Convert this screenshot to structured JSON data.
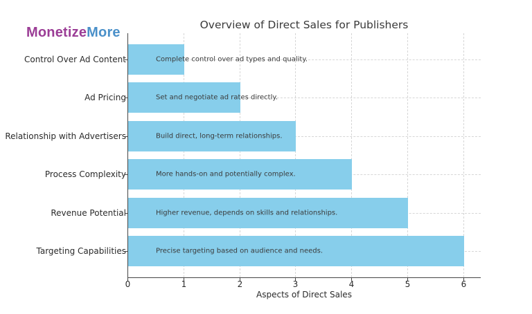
{
  "logo": {
    "part1": "Monetize",
    "part2": "More",
    "color1": "#9b3d96",
    "color2": "#4a90c9"
  },
  "chart_data": {
    "type": "bar",
    "orientation": "horizontal",
    "title": "Overview of Direct Sales for Publishers",
    "xlabel": "Aspects of Direct Sales",
    "ylabel": "",
    "xlim": [
      0,
      6.3
    ],
    "xticks": [
      "0",
      "1",
      "2",
      "3",
      "4",
      "5",
      "6"
    ],
    "grid": true,
    "bar_color": "#87ceeb",
    "categories": [
      "Control Over Ad Content",
      "Ad Pricing",
      "Relationship with Advertisers",
      "Process Complexity",
      "Revenue Potential",
      "Targeting Capabilities"
    ],
    "values": [
      1,
      2,
      3,
      4,
      5,
      6
    ],
    "annotations": [
      "Complete control over ad types and quality.",
      "Set and negotiate ad rates directly.",
      "Build direct, long-term relationships.",
      "More hands-on and potentially complex.",
      "Higher revenue, depends on skills and relationships.",
      "Precise targeting based on audience and needs."
    ]
  }
}
